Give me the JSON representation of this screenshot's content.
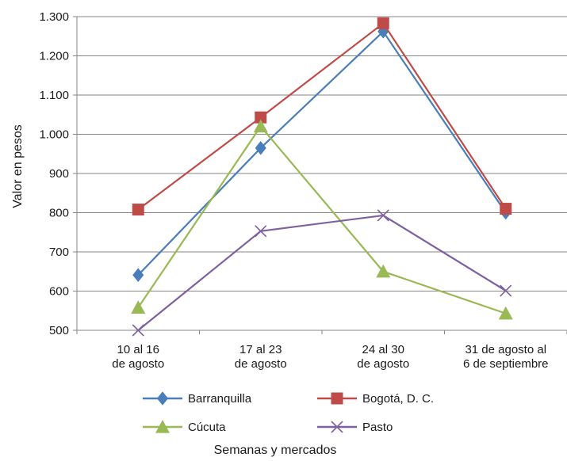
{
  "chart_data": {
    "type": "line",
    "title": "",
    "xlabel": "Semanas y mercados",
    "ylabel": "Valor en pesos",
    "ylim": [
      500,
      1300
    ],
    "yticks": [
      {
        "value": 500,
        "label": "500"
      },
      {
        "value": 600,
        "label": "600"
      },
      {
        "value": 700,
        "label": "700"
      },
      {
        "value": 800,
        "label": "800"
      },
      {
        "value": 900,
        "label": "900"
      },
      {
        "value": 1000,
        "label": "1.000"
      },
      {
        "value": 1100,
        "label": "1.100"
      },
      {
        "value": 1200,
        "label": "1.200"
      },
      {
        "value": 1300,
        "label": "1.300"
      }
    ],
    "categories": [
      [
        "10 al 16",
        "de agosto"
      ],
      [
        "17 al 23",
        "de agosto"
      ],
      [
        "24 al 30",
        "de agosto"
      ],
      [
        "31 de agosto al",
        "6 de septiembre"
      ]
    ],
    "grid": "horizontal",
    "legend_position": "bottom",
    "series": [
      {
        "name": "Barranquilla",
        "color": "#4a7ebb",
        "marker": "diamond",
        "values": [
          641,
          965,
          1262,
          800
        ]
      },
      {
        "name": "Bogotá, D. C.",
        "color": "#be4b48",
        "marker": "square",
        "values": [
          808,
          1043,
          1283,
          810
        ]
      },
      {
        "name": "Cúcuta",
        "color": "#98b954",
        "marker": "triangle",
        "values": [
          558,
          1020,
          650,
          543
        ]
      },
      {
        "name": "Pasto",
        "color": "#7d60a0",
        "marker": "x",
        "values": [
          500,
          753,
          793,
          601
        ]
      }
    ]
  }
}
